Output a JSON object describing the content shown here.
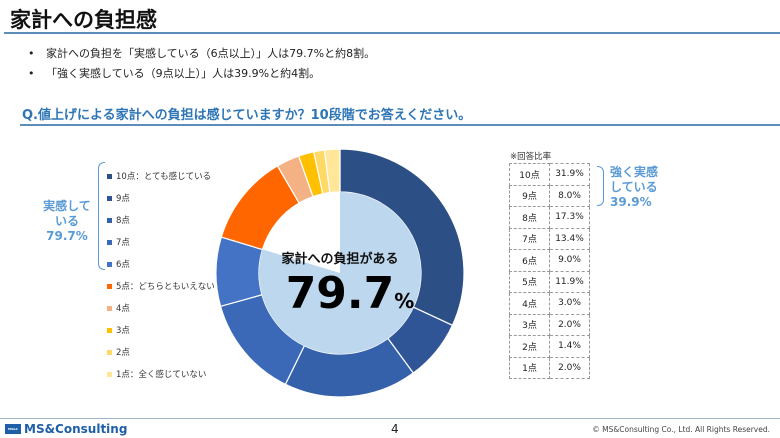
{
  "title": "家計への負担感",
  "bullets": [
    "家計への負担を「実感している（6点以上）」人は79.7%と約8割。",
    "「強く実感している（9点以上）」人は39.9%と約4割。"
  ],
  "question": "Q.値上げによる家計への負担は感じていますか？10段階でお答えください。",
  "left_bracket_label": "実感している79.7%",
  "right_bracket_label": "強く実感している39.9%",
  "center": {
    "label": "家計への負担がある",
    "value": "79.7",
    "unit": "%"
  },
  "table_note": "※回答比率",
  "chart_data": {
    "type": "pie",
    "subtype": "donut",
    "legend_position": "left",
    "categories": [
      "10点：とても感じている",
      "9点",
      "8点",
      "7点",
      "6点",
      "5点：どちらともいえない",
      "4点",
      "3点",
      "2点",
      "1点：全く感じていない"
    ],
    "table_labels": [
      "10点",
      "9点",
      "8点",
      "7点",
      "6点",
      "5点",
      "4点",
      "3点",
      "2点",
      "1点"
    ],
    "values": [
      31.9,
      8.0,
      17.3,
      13.4,
      9.0,
      11.9,
      3.0,
      2.0,
      1.4,
      2.0
    ],
    "value_labels": [
      "31.9%",
      "8.0%",
      "17.3%",
      "13.4%",
      "9.0%",
      "11.9%",
      "3.0%",
      "2.0%",
      "1.4%",
      "2.0%"
    ],
    "colors": [
      "#2c4f85",
      "#2f5597",
      "#3560aa",
      "#3b69b8",
      "#4472c4",
      "#ff6600",
      "#f4b183",
      "#ffc000",
      "#ffd966",
      "#ffe699"
    ],
    "inner_pie": {
      "value": 79.7,
      "color": "#bdd7ee"
    }
  },
  "footer": {
    "logo": "MS&Consulting",
    "logo_mark": "MS&C",
    "page": "4",
    "copyright": "© MS&Consulting Co., Ltd. All Rights Reserved."
  }
}
